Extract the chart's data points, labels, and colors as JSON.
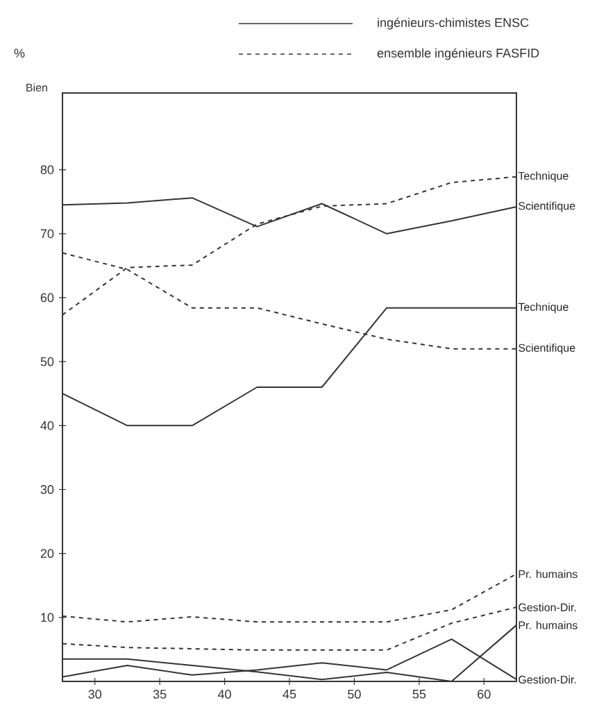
{
  "chart_data": {
    "type": "line",
    "ylabel": "%",
    "annotations": [
      "Bien",
      "ingénieurs-chimistes ENSC",
      "ensemble ingénieurs FASFID"
    ],
    "x": [
      27.5,
      32.5,
      37.5,
      42.5,
      47.5,
      52.5,
      57.5,
      62.5
    ],
    "xlim": [
      27.5,
      62.5
    ],
    "xticks": [
      30,
      35,
      40,
      45,
      50,
      55,
      60
    ],
    "ylim": [
      0,
      92
    ],
    "yticks": [
      10,
      20,
      30,
      40,
      50,
      60,
      70,
      80
    ],
    "marker": "none",
    "grid": false,
    "series": [
      {
        "name": "Scientifique",
        "color": "#333333",
        "line_style": "solid",
        "values": [
          74.5,
          74.8,
          75.6,
          71.1,
          74.7,
          70,
          72,
          74.2
        ]
      },
      {
        "name": "Technique",
        "color": "#333333",
        "line_style": "dashed",
        "values": [
          57.3,
          64.7,
          65.1,
          71.5,
          74.3,
          74.7,
          78,
          78.9
        ]
      },
      {
        "name": "Technique",
        "color": "#333333",
        "line_style": "solid",
        "values": [
          45,
          40,
          40,
          46,
          46,
          58.4,
          58.4,
          58.4
        ]
      },
      {
        "name": "Scientifique",
        "color": "#333333",
        "line_style": "dashed",
        "values": [
          67,
          64.4,
          58.4,
          58.4,
          55.9,
          53.5,
          52,
          52
        ]
      },
      {
        "name": "Pr. humains",
        "color": "#333333",
        "line_style": "dashed",
        "values": [
          10.2,
          9.3,
          10.1,
          9.3,
          9.3,
          9.3,
          11.2,
          16.8
        ]
      },
      {
        "name": "Gestion-Dir.",
        "color": "#333333",
        "line_style": "dashed",
        "values": [
          5.9,
          5.3,
          5.1,
          4.9,
          4.9,
          4.9,
          9.1,
          11.6
        ]
      },
      {
        "name": "Pr. humains",
        "color": "#333333",
        "line_style": "solid",
        "values": [
          3.5,
          3.5,
          2.5,
          1.5,
          0.3,
          1.4,
          0,
          8.8
        ]
      },
      {
        "name": "Gestion-Dir.",
        "color": "#333333",
        "line_style": "solid",
        "values": [
          0.7,
          2.5,
          1,
          1.8,
          2.9,
          1.8,
          6.6,
          0.3
        ]
      }
    ]
  }
}
